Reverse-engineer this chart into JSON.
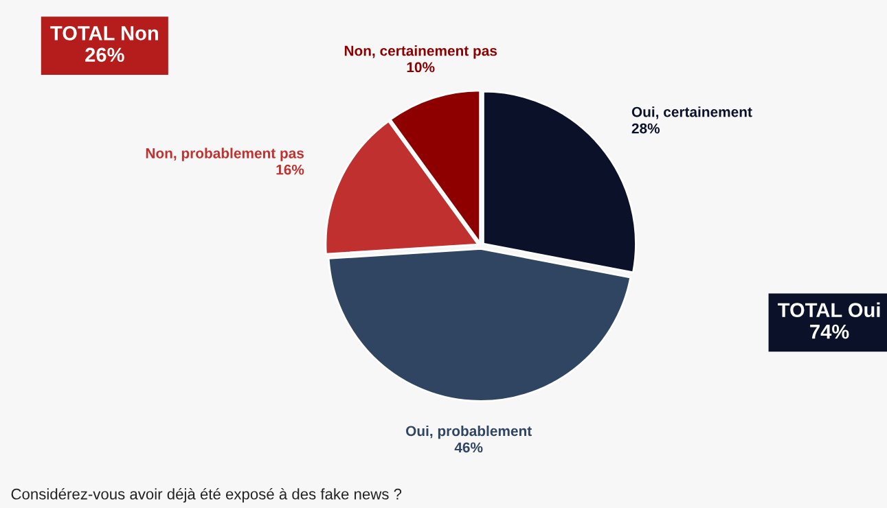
{
  "chart_data": {
    "type": "pie",
    "categories": [
      "Oui, certainement",
      "Oui, probablement",
      "Non, probablement pas",
      "Non, certainement pas"
    ],
    "values": [
      28,
      46,
      16,
      10
    ],
    "value_labels": [
      "28%",
      "46%",
      "16%",
      "10%"
    ],
    "colors": [
      "#0b1128",
      "#2f4562",
      "#c0302e",
      "#8e0000"
    ],
    "annotations": [
      "TOTAL Non\n26%",
      "TOTAL Oui\n74%",
      "Considérez-vous avoir déjà été exposé à des fake news ?"
    ],
    "legend": false
  }
}
